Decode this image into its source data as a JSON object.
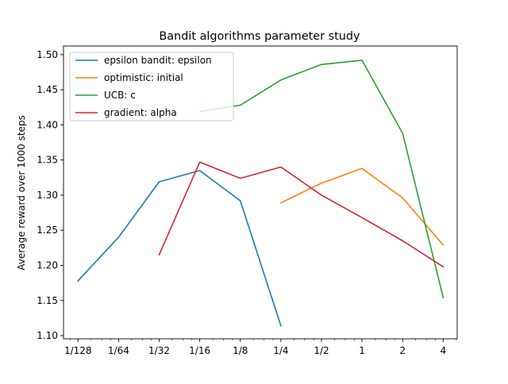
{
  "chart_data": {
    "type": "line",
    "title": "Bandit algorithms parameter study",
    "xlabel": "",
    "ylabel": "Average reward over 1000 steps",
    "x_scale": "log2",
    "x_ticks": [
      {
        "value": 0.0078125,
        "label": "1/128"
      },
      {
        "value": 0.015625,
        "label": "1/64"
      },
      {
        "value": 0.03125,
        "label": "1/32"
      },
      {
        "value": 0.0625,
        "label": "1/16"
      },
      {
        "value": 0.125,
        "label": "1/8"
      },
      {
        "value": 0.25,
        "label": "1/4"
      },
      {
        "value": 0.5,
        "label": "1/2"
      },
      {
        "value": 1,
        "label": "1"
      },
      {
        "value": 2,
        "label": "2"
      },
      {
        "value": 4,
        "label": "4"
      }
    ],
    "y_ticks": [
      1.1,
      1.15,
      1.2,
      1.25,
      1.3,
      1.35,
      1.4,
      1.45,
      1.5
    ],
    "xlim": [
      0.0061,
      5.08
    ],
    "ylim": [
      1.0955,
      1.5123
    ],
    "grid": false,
    "legend_position": "top-left",
    "series": [
      {
        "name": "epsilon bandit: epsilon",
        "color": "#1f77b4",
        "x": [
          0.0078125,
          0.015625,
          0.03125,
          0.0625,
          0.125,
          0.25
        ],
        "y": [
          1.178,
          1.24,
          1.319,
          1.335,
          1.292,
          1.114
        ]
      },
      {
        "name": "optimistic: initial",
        "color": "#ff7f0e",
        "x": [
          0.25,
          0.5,
          1,
          2,
          4
        ],
        "y": [
          1.289,
          1.317,
          1.338,
          1.296,
          1.229
        ]
      },
      {
        "name": "UCB: c",
        "color": "#2ca02c",
        "x": [
          0.0625,
          0.125,
          0.25,
          0.5,
          1,
          2,
          4
        ],
        "y": [
          1.419,
          1.428,
          1.464,
          1.486,
          1.492,
          1.388,
          1.154
        ]
      },
      {
        "name": "gradient: alpha",
        "color": "#d62728",
        "x": [
          0.03125,
          0.0625,
          0.125,
          0.25,
          0.5,
          1,
          2,
          4
        ],
        "y": [
          1.215,
          1.347,
          1.324,
          1.34,
          1.3,
          1.268,
          1.235,
          1.198
        ]
      }
    ]
  }
}
